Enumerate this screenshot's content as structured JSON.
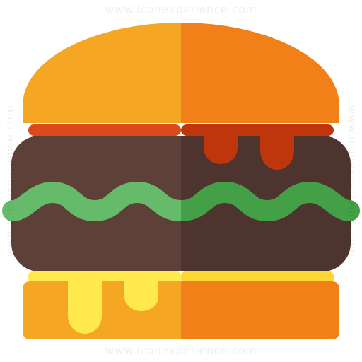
{
  "icon": {
    "name": "hamburger-icon",
    "watermark": "www.iconexperience.com"
  },
  "colors": {
    "bun_light": "#F5A623",
    "bun_dark": "#F28019",
    "sauce_light": "#DB4A1B",
    "sauce_dark": "#BF360C",
    "patty_light": "#5D4037",
    "patty_dark": "#4E342E",
    "lettuce_light": "#66BB6A",
    "lettuce_dark": "#43A047",
    "cheese_light": "#FFE94D",
    "cheese_dark": "#FDD835"
  }
}
